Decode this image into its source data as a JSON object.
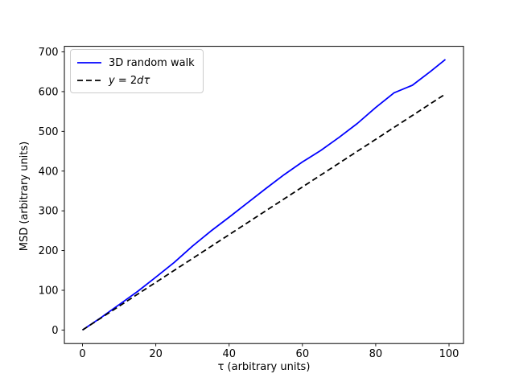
{
  "chart_data": {
    "type": "line",
    "title": "",
    "xlabel": "τ (arbitrary units)",
    "ylabel": "MSD (arbitrary units)",
    "xlim": [
      -4.95,
      103.95
    ],
    "ylim": [
      -34,
      714
    ],
    "xticks": [
      0,
      20,
      40,
      60,
      80,
      100
    ],
    "yticks": [
      0,
      100,
      200,
      300,
      400,
      500,
      600,
      700
    ],
    "grid": false,
    "legend_position": "upper-left",
    "series": [
      {
        "name": "3D random walk",
        "color": "#0000ff",
        "style": "solid",
        "math": false,
        "x": [
          0,
          5,
          10,
          15,
          20,
          25,
          30,
          35,
          40,
          45,
          50,
          55,
          60,
          65,
          70,
          75,
          80,
          85,
          90,
          95,
          99
        ],
        "y": [
          0,
          31,
          64,
          97,
          133,
          170,
          211,
          249,
          284,
          320,
          356,
          391,
          423,
          452,
          485,
          520,
          560,
          597,
          616,
          651,
          681
        ]
      },
      {
        "name": "y = 2dτ",
        "color": "#000000",
        "style": "dashed",
        "math": true,
        "x": [
          0,
          99
        ],
        "y": [
          0,
          594
        ]
      }
    ]
  }
}
